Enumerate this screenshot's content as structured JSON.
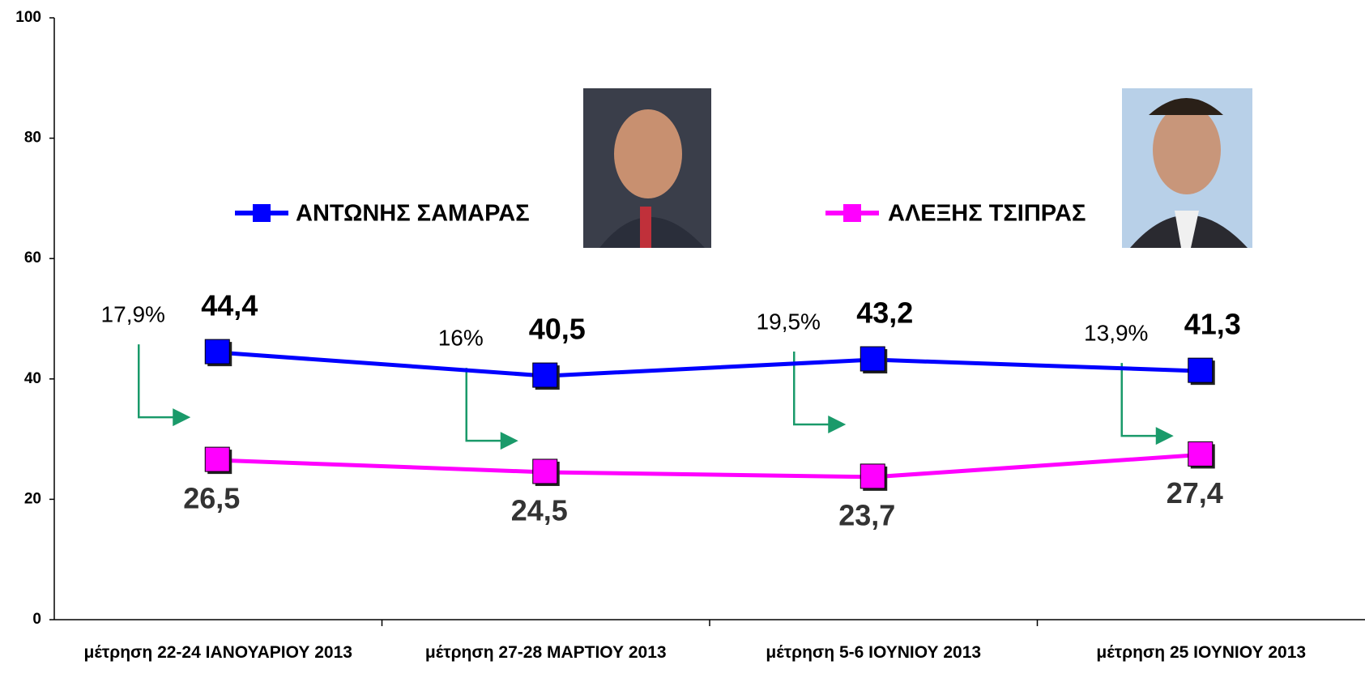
{
  "chart_data": {
    "type": "line",
    "categories": [
      "μέτρηση  22-24 ΙΑΝΟΥΑΡΙΟΥ 2013",
      "μέτρηση  27-28 ΜΑΡΤΙΟΥ  2013",
      "μέτρηση  5-6 ΙΟΥΝΙΟΥ  2013",
      "μέτρηση 25 ΙΟΥΝΙΟΥ 2013"
    ],
    "series": [
      {
        "name": "ΑΝΤΩΝΗΣ ΣΑΜΑΡΑΣ",
        "color": "#0000ff",
        "values": [
          44.4,
          40.5,
          43.2,
          41.3
        ],
        "value_labels": [
          "44,4",
          "40,5",
          "43,2",
          "41,3"
        ]
      },
      {
        "name": "ΑΛΕΞΗΣ ΤΣΙΠΡΑΣ",
        "color": "#ff00ff",
        "values": [
          26.5,
          24.5,
          23.7,
          27.4
        ],
        "value_labels": [
          "26,5",
          "24,5",
          "23,7",
          "27,4"
        ]
      }
    ],
    "gap_labels": [
      "17,9%",
      "16%",
      "19,5%",
      "13,9%"
    ],
    "ylim": [
      0,
      100
    ],
    "yticks": [
      0,
      20,
      40,
      60,
      80,
      100
    ],
    "grid": false,
    "legend": "top"
  }
}
